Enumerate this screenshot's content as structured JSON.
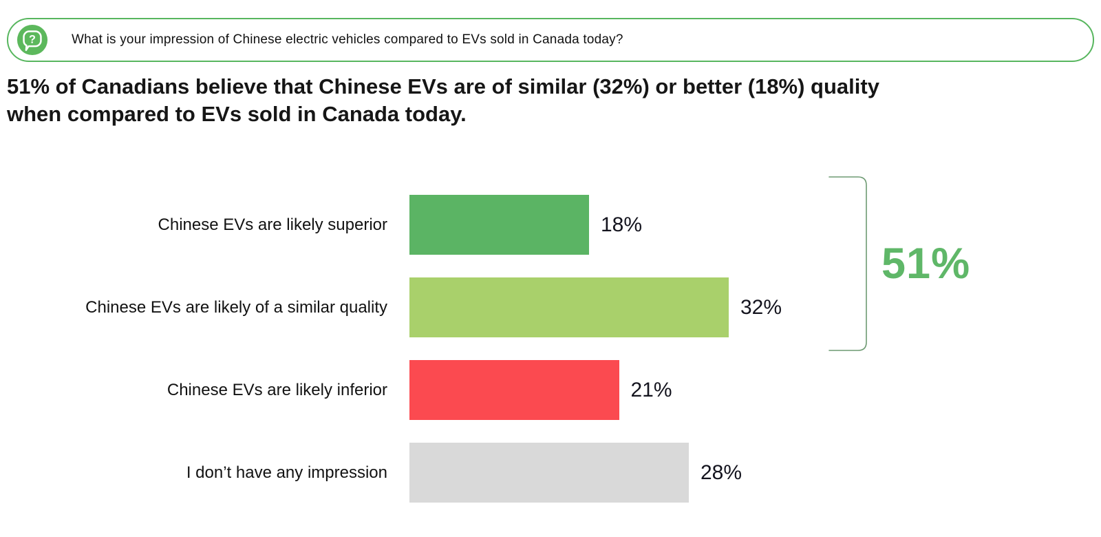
{
  "question_banner": {
    "icon": "question-bubble-icon",
    "text": "What is your impression of Chinese electric vehicles compared to EVs sold in Canada today?"
  },
  "headline": {
    "line1": "51% of Canadians believe that Chinese EVs are of similar (32%) or better (18%) quality",
    "line2": "when compared to EVs sold in Canada today."
  },
  "chart_data": {
    "type": "bar",
    "orientation": "horizontal",
    "title": "",
    "xlabel": "",
    "ylabel": "",
    "grid": false,
    "axis_visible": false,
    "categories": [
      "Chinese EVs are likely superior",
      "Chinese EVs are likely of a similar quality",
      "Chinese EVs are likely inferior",
      "I don’t have any impression"
    ],
    "values": [
      18,
      32,
      21,
      28
    ],
    "value_labels": [
      "18%",
      "32%",
      "21%",
      "28%"
    ],
    "bar_colors": [
      "#5bb464",
      "#a9d06b",
      "#fb4a50",
      "#d9d9d9"
    ],
    "xlim": [
      0,
      100
    ],
    "annotation": {
      "label": "51%",
      "color": "#5fb768",
      "applies_to": [
        "Chinese EVs are likely superior",
        "Chinese EVs are likely of a similar quality"
      ]
    }
  },
  "colors": {
    "banner_border": "#57b65e",
    "icon_green": "#5cb85c",
    "bracket": "#6d9a72",
    "headline_text": "#161616"
  }
}
